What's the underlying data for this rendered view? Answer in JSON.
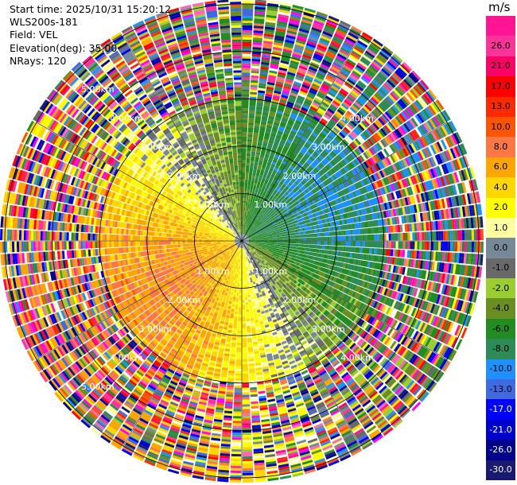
{
  "info": {
    "start_time": "Start time: 2025/10/31 15:20:12",
    "instrument": "WLS200s-181",
    "field": "Field: VEL",
    "elevation": "Elevation(deg): 35.00",
    "nrays": "NRays: 120"
  },
  "colorbar": {
    "unit": "m/s",
    "bins": [
      {
        "label": "26.0",
        "color": "#ff3399"
      },
      {
        "label": "21.0",
        "color": "#ff0066"
      },
      {
        "label": "17.0",
        "color": "#ff0000"
      },
      {
        "label": "13.0",
        "color": "#ff2a00"
      },
      {
        "label": "10.0",
        "color": "#ff5500"
      },
      {
        "label": "8.0",
        "color": "#ff7744"
      },
      {
        "label": "6.0",
        "color": "#ffa500"
      },
      {
        "label": "4.0",
        "color": "#ffd700"
      },
      {
        "label": "2.0",
        "color": "#ffff00"
      },
      {
        "label": "1.0",
        "color": "#ffffa0"
      },
      {
        "label": "0.0",
        "color": "#778899"
      },
      {
        "label": "-1.0",
        "color": "#696969"
      },
      {
        "label": "-2.0",
        "color": "#9acd32"
      },
      {
        "label": "-4.0",
        "color": "#6b8e23"
      },
      {
        "label": "-6.0",
        "color": "#228b22"
      },
      {
        "label": "-8.0",
        "color": "#2e8b57"
      },
      {
        "label": "-10.0",
        "color": "#1e90ff"
      },
      {
        "label": "-13.0",
        "color": "#4169e1"
      },
      {
        "label": "-17.0",
        "color": "#0000ff"
      },
      {
        "label": "-21.0",
        "color": "#0000cd"
      },
      {
        "label": "-26.0",
        "color": "#00008b"
      },
      {
        "label": "-30.0",
        "color": "#191970"
      }
    ],
    "top_extra_color": "#ff1493"
  },
  "chart_data": {
    "type": "heatmap",
    "projection": "polar-ppi",
    "field": "VEL",
    "unit": "m/s",
    "nrays": 120,
    "max_range_km": 5.1,
    "range_rings_km": [
      1,
      2,
      3,
      4,
      5
    ],
    "ring_labels": [
      "1.00km",
      "2.00km",
      "3.00km",
      "4.00km",
      "5.00km"
    ],
    "wind_from_deg": 60,
    "wind_speed_ms": 8,
    "clean_range_km": 3.0
  }
}
